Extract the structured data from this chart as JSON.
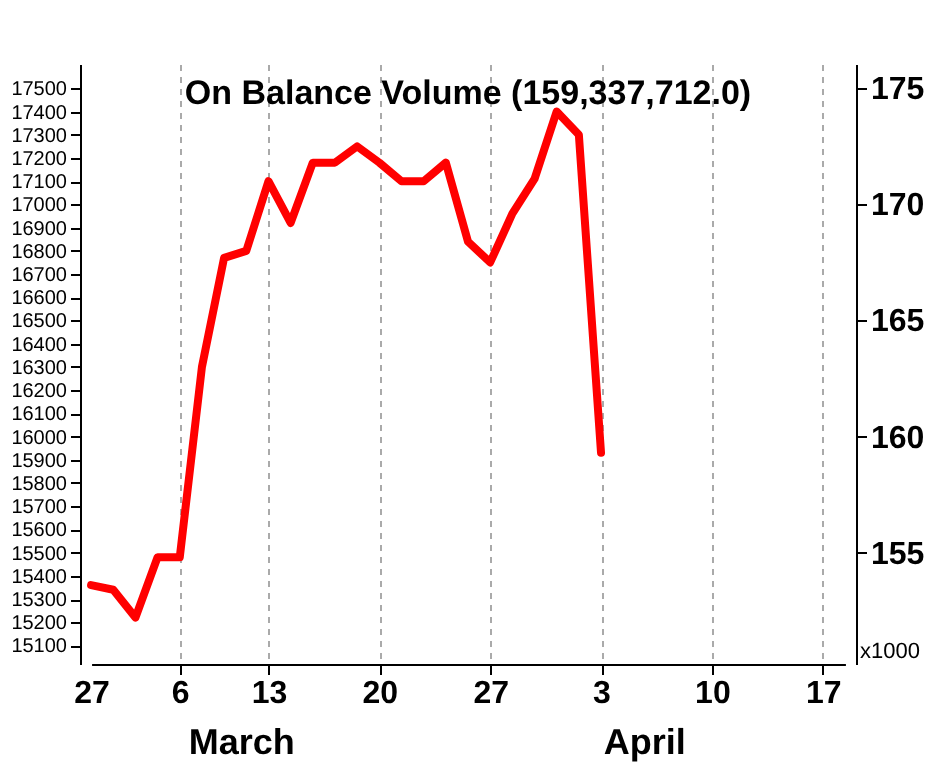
{
  "chart_data": {
    "type": "line",
    "title": "On Balance Volume (159,337,712.0)",
    "categories": [
      "27",
      null,
      null,
      null,
      "6",
      null,
      null,
      null,
      "13",
      null,
      null,
      null,
      null,
      "20",
      null,
      null,
      null,
      null,
      "27",
      null,
      null,
      null,
      null,
      "3",
      null,
      null,
      null,
      null,
      "10",
      null,
      null,
      null,
      null,
      "17",
      null
    ],
    "series": [
      {
        "color": "#ff0000",
        "values": [
          15360,
          15340,
          15220,
          15480,
          15480,
          16300,
          16770,
          16800,
          17100,
          16920,
          17180,
          17180,
          17250,
          17180,
          17100,
          17100,
          17180,
          16840,
          16750,
          16960,
          17110,
          17400,
          17300,
          15930,
          null,
          null,
          null,
          null,
          null,
          null,
          null,
          null,
          null,
          null,
          null
        ]
      }
    ],
    "ylim": [
      15020,
      17605
    ],
    "yticks": [
      15100,
      15200,
      15300,
      15400,
      15500,
      15600,
      15700,
      15800,
      15900,
      16000,
      16100,
      16200,
      16300,
      16400,
      16500,
      16600,
      16700,
      16800,
      16900,
      17000,
      17100,
      17200,
      17300,
      17400,
      17500
    ],
    "y2lim": [
      150.2,
      176.05
    ],
    "y2ticks": [
      155,
      160,
      165,
      170,
      175
    ],
    "annotations": [
      "March",
      "April",
      "x1000"
    ],
    "grid": "x",
    "marker": "none",
    "line_style": "solid"
  }
}
